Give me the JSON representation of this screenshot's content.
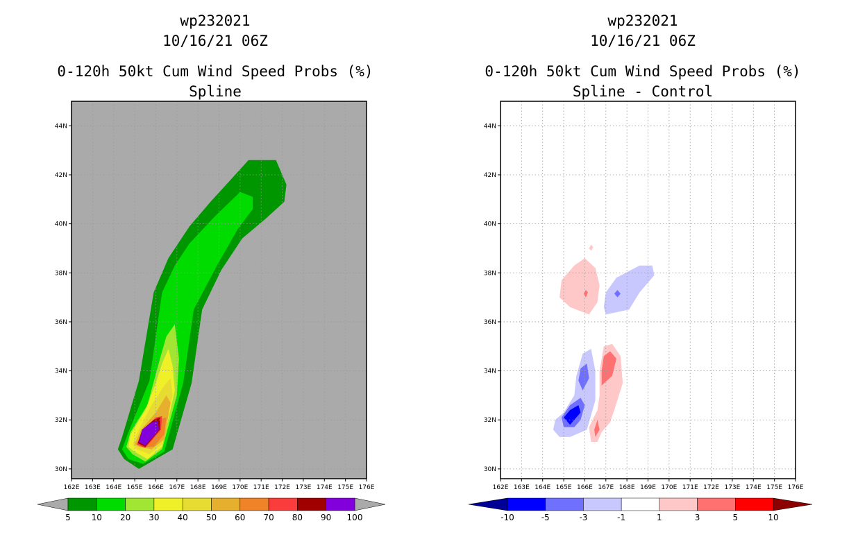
{
  "panels": [
    {
      "storm_id": "wp232021",
      "datetime": "10/16/21 06Z",
      "title": "0-120h 50kt Cum Wind Speed Probs (%)",
      "subtitle": "Spline"
    },
    {
      "storm_id": "wp232021",
      "datetime": "10/16/21 06Z",
      "title": "0-120h 50kt Cum Wind Speed Probs (%)",
      "subtitle": "Spline - Control"
    }
  ],
  "chart_data": [
    {
      "type": "heatmap",
      "title": "0-120h 50kt Cum Wind Speed Probs (%)",
      "subtitle": "Spline",
      "x_tick_labels": [
        "162E",
        "163E",
        "164E",
        "165E",
        "166E",
        "167E",
        "168E",
        "169E",
        "170E",
        "171E",
        "172E",
        "173E",
        "174E",
        "175E",
        "176E"
      ],
      "y_tick_labels": [
        "30N",
        "32N",
        "34N",
        "36N",
        "38N",
        "40N",
        "42N",
        "44N"
      ],
      "xlim": [
        162,
        176
      ],
      "ylim": [
        29.6,
        45
      ],
      "background": "#aaaaaa",
      "grid": true,
      "colorbar": {
        "labels": [
          "5",
          "10",
          "20",
          "30",
          "40",
          "50",
          "60",
          "70",
          "80",
          "90",
          "100"
        ],
        "colors": [
          "#009600",
          "#00dc00",
          "#a0e632",
          "#f0f028",
          "#e6dc32",
          "#e6af2d",
          "#f08228",
          "#fa3c3c",
          "#a00000",
          "#8200dc"
        ],
        "extend_colors": [
          "#aaaaaa",
          "#aaaaaa"
        ]
      },
      "contours": [
        {
          "level": "5-10",
          "color": "#009600",
          "points": [
            [
              165.2,
              30.0
            ],
            [
              166.8,
              30.8
            ],
            [
              167.7,
              33.5
            ],
            [
              168.2,
              36.5
            ],
            [
              169.1,
              38.1
            ],
            [
              170.1,
              39.4
            ],
            [
              171.2,
              40.2
            ],
            [
              172.1,
              40.9
            ],
            [
              172.2,
              41.6
            ],
            [
              171.7,
              42.6
            ],
            [
              170.4,
              42.6
            ],
            [
              168.6,
              40.9
            ],
            [
              167.6,
              39.9
            ],
            [
              166.6,
              38.6
            ],
            [
              165.9,
              37.2
            ],
            [
              165.2,
              33.6
            ],
            [
              164.4,
              31.3
            ],
            [
              164.2,
              30.8
            ],
            [
              164.5,
              30.4
            ]
          ]
        },
        {
          "level": "10-20",
          "color": "#00dc00",
          "points": [
            [
              165.4,
              30.2
            ],
            [
              166.4,
              30.7
            ],
            [
              167.3,
              33.5
            ],
            [
              167.8,
              36.5
            ],
            [
              168.9,
              38.3
            ],
            [
              169.9,
              39.8
            ],
            [
              170.6,
              40.6
            ],
            [
              170.6,
              41.1
            ],
            [
              170.0,
              41.3
            ],
            [
              168.8,
              40.3
            ],
            [
              167.6,
              39.2
            ],
            [
              166.9,
              38.3
            ],
            [
              166.3,
              37.2
            ],
            [
              165.7,
              33.6
            ],
            [
              164.7,
              31.5
            ],
            [
              164.4,
              30.8
            ],
            [
              164.7,
              30.4
            ]
          ]
        },
        {
          "level": "20-30",
          "color": "#a0e632",
          "points": [
            [
              165.5,
              30.3
            ],
            [
              166.3,
              30.8
            ],
            [
              167.0,
              33.0
            ],
            [
              167.1,
              34.5
            ],
            [
              166.9,
              35.9
            ],
            [
              166.5,
              35.4
            ],
            [
              166.2,
              34.5
            ],
            [
              165.6,
              32.6
            ],
            [
              164.8,
              31.5
            ],
            [
              164.6,
              30.9
            ],
            [
              164.9,
              30.6
            ]
          ]
        },
        {
          "level": "30-40",
          "color": "#f0f028",
          "points": [
            [
              165.6,
              30.4
            ],
            [
              166.3,
              30.9
            ],
            [
              166.9,
              33.2
            ],
            [
              166.8,
              34.2
            ],
            [
              166.6,
              34.9
            ],
            [
              166.3,
              34.3
            ],
            [
              166.0,
              33.5
            ],
            [
              165.5,
              32.4
            ],
            [
              164.8,
              31.4
            ],
            [
              164.7,
              30.9
            ],
            [
              165.0,
              30.7
            ]
          ]
        },
        {
          "level": "40-50",
          "color": "#e6dc32",
          "points": [
            [
              165.7,
              30.6
            ],
            [
              166.3,
              31.0
            ],
            [
              166.8,
              33.0
            ],
            [
              166.7,
              33.7
            ],
            [
              166.4,
              33.4
            ],
            [
              165.8,
              32.6
            ],
            [
              165.2,
              31.6
            ],
            [
              164.9,
              31.0
            ],
            [
              165.1,
              30.8
            ]
          ]
        },
        {
          "level": "50-60",
          "color": "#e6af2d",
          "points": [
            [
              165.8,
              30.8
            ],
            [
              166.4,
              31.2
            ],
            [
              166.7,
              32.7
            ],
            [
              166.5,
              33.0
            ],
            [
              166.0,
              32.3
            ],
            [
              165.3,
              31.6
            ],
            [
              165.0,
              31.0
            ],
            [
              165.2,
              30.9
            ]
          ]
        },
        {
          "level": "60-70",
          "color": "#f08228",
          "points": [
            [
              165.9,
              30.9
            ],
            [
              166.4,
              31.4
            ],
            [
              166.5,
              32.1
            ],
            [
              166.1,
              32.0
            ],
            [
              165.6,
              31.6
            ],
            [
              165.1,
              31.0
            ],
            [
              165.3,
              30.9
            ]
          ]
        },
        {
          "level": "70-80",
          "color": "#fa3c3c",
          "points": [
            [
              165.5,
              30.85
            ],
            [
              166.25,
              31.6
            ],
            [
              166.3,
              32.15
            ],
            [
              166.0,
              32.1
            ],
            [
              165.4,
              31.6
            ],
            [
              165.1,
              31.0
            ]
          ]
        },
        {
          "level": "80-90",
          "color": "#a00000",
          "points": [
            [
              165.5,
              30.9
            ],
            [
              166.2,
              31.6
            ],
            [
              166.2,
              32.1
            ],
            [
              165.9,
              32.0
            ],
            [
              165.35,
              31.6
            ],
            [
              165.15,
              31.05
            ]
          ]
        },
        {
          "level": "90-100",
          "color": "#8200dc",
          "points": [
            [
              165.5,
              30.95
            ],
            [
              166.15,
              31.6
            ],
            [
              166.1,
              31.95
            ],
            [
              165.8,
              31.9
            ],
            [
              165.35,
              31.6
            ],
            [
              165.2,
              31.1
            ]
          ]
        }
      ]
    },
    {
      "type": "heatmap",
      "title": "0-120h 50kt Cum Wind Speed Probs (%)",
      "subtitle": "Spline - Control",
      "x_tick_labels": [
        "162E",
        "163E",
        "164E",
        "165E",
        "166E",
        "167E",
        "168E",
        "169E",
        "170E",
        "171E",
        "172E",
        "173E",
        "174E",
        "175E",
        "176E"
      ],
      "y_tick_labels": [
        "30N",
        "32N",
        "34N",
        "36N",
        "38N",
        "40N",
        "42N",
        "44N"
      ],
      "xlim": [
        162,
        176
      ],
      "ylim": [
        29.6,
        45
      ],
      "background": "#ffffff",
      "grid": true,
      "colorbar": {
        "labels": [
          "-10",
          "-5",
          "-3",
          "-1",
          "1",
          "3",
          "5",
          "10"
        ],
        "colors": [
          "#0000ff",
          "#7070ff",
          "#c8c8ff",
          "#ffffff",
          "#ffc8c8",
          "#ff7070",
          "#ff0000"
        ],
        "extend_colors": [
          "#000096",
          "#8c0000"
        ]
      },
      "contours": [
        {
          "level": "1-3",
          "color": "#ffc8c8",
          "points": [
            [
              166.2,
              36.3
            ],
            [
              166.6,
              36.8
            ],
            [
              166.7,
              37.5
            ],
            [
              166.5,
              38.2
            ],
            [
              166.0,
              38.6
            ],
            [
              165.5,
              38.3
            ],
            [
              164.9,
              37.7
            ],
            [
              164.8,
              37.0
            ],
            [
              165.3,
              36.6
            ]
          ]
        },
        {
          "level": "1-3",
          "color": "#ffc8c8",
          "points": [
            [
              166.3,
              38.9
            ],
            [
              166.4,
              39.05
            ],
            [
              166.3,
              39.15
            ],
            [
              166.2,
              39.0
            ]
          ]
        },
        {
          "level": "1-3",
          "color": "#ffc8c8",
          "points": [
            [
              166.8,
              31.5
            ],
            [
              167.2,
              31.9
            ],
            [
              167.4,
              32.4
            ],
            [
              167.8,
              33.5
            ],
            [
              167.7,
              34.6
            ],
            [
              167.3,
              35.1
            ],
            [
              166.9,
              35.0
            ],
            [
              166.7,
              34.0
            ],
            [
              166.7,
              33.0
            ],
            [
              166.6,
              32.4
            ],
            [
              166.2,
              31.7
            ],
            [
              166.3,
              31.1
            ],
            [
              166.6,
              31.1
            ]
          ]
        },
        {
          "level": "3-5",
          "color": "#ff7070",
          "points": [
            [
              166.8,
              33.4
            ],
            [
              167.3,
              33.8
            ],
            [
              167.5,
              34.5
            ],
            [
              167.2,
              34.8
            ],
            [
              166.9,
              34.6
            ],
            [
              166.8,
              34.0
            ]
          ]
        },
        {
          "level": "3-5",
          "color": "#ff7070",
          "points": [
            [
              166.5,
              31.3
            ],
            [
              166.7,
              31.6
            ],
            [
              166.6,
              32.0
            ],
            [
              166.45,
              31.6
            ]
          ]
        },
        {
          "level": "3-5",
          "color": "#ff7070",
          "points": [
            [
              166.05,
              37.0
            ],
            [
              166.15,
              37.2
            ],
            [
              166.05,
              37.3
            ],
            [
              165.95,
              37.15
            ]
          ]
        },
        {
          "level": "-1--3",
          "color": "#c8c8ff",
          "points": [
            [
              167.0,
              36.3
            ],
            [
              168.1,
              36.5
            ],
            [
              168.6,
              37.2
            ],
            [
              169.3,
              37.9
            ],
            [
              169.2,
              38.3
            ],
            [
              168.6,
              38.3
            ],
            [
              167.5,
              37.8
            ],
            [
              167.0,
              37.2
            ],
            [
              166.9,
              36.6
            ]
          ]
        },
        {
          "level": "-1--3",
          "color": "#c8c8ff",
          "points": [
            [
              165.3,
              31.3
            ],
            [
              166.1,
              31.6
            ],
            [
              166.5,
              32.8
            ],
            [
              166.5,
              34.0
            ],
            [
              166.3,
              34.9
            ],
            [
              165.9,
              34.7
            ],
            [
              165.6,
              33.8
            ],
            [
              165.5,
              33.0
            ],
            [
              165.0,
              32.3
            ],
            [
              164.6,
              32.0
            ],
            [
              164.5,
              31.6
            ],
            [
              164.8,
              31.3
            ]
          ]
        },
        {
          "level": "-3--5",
          "color": "#7070ff",
          "points": [
            [
              165.5,
              31.7
            ],
            [
              165.8,
              32.0
            ],
            [
              166.0,
              32.6
            ],
            [
              165.8,
              32.9
            ],
            [
              165.3,
              32.6
            ],
            [
              164.9,
              32.1
            ],
            [
              165.0,
              31.7
            ]
          ]
        },
        {
          "level": "-3--5",
          "color": "#7070ff",
          "points": [
            [
              165.9,
              33.2
            ],
            [
              166.2,
              33.7
            ],
            [
              166.1,
              34.3
            ],
            [
              165.8,
              34.1
            ],
            [
              165.7,
              33.6
            ]
          ]
        },
        {
          "level": "-3--5",
          "color": "#7070ff",
          "points": [
            [
              167.55,
              37.0
            ],
            [
              167.7,
              37.15
            ],
            [
              167.55,
              37.3
            ],
            [
              167.4,
              37.15
            ]
          ]
        },
        {
          "level": "-5--10",
          "color": "#0000ff",
          "points": [
            [
              165.3,
              31.8
            ],
            [
              165.8,
              32.3
            ],
            [
              165.7,
              32.6
            ],
            [
              165.3,
              32.4
            ],
            [
              165.0,
              32.1
            ]
          ]
        }
      ]
    }
  ]
}
